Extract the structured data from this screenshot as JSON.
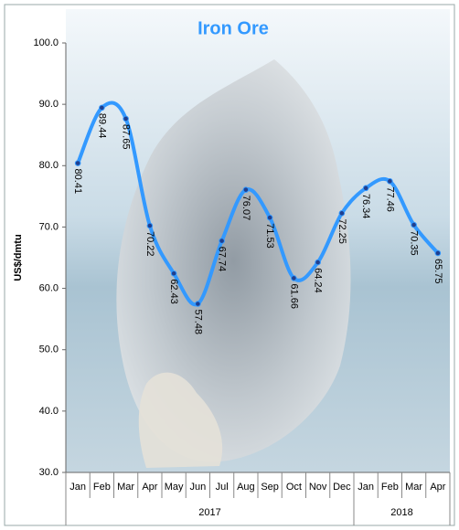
{
  "chart_data": {
    "type": "line",
    "title": "Iron Ore",
    "y_label": "US$/dmtu",
    "categories": [
      "Jan",
      "Feb",
      "Mar",
      "Apr",
      "May",
      "Jun",
      "Jul",
      "Aug",
      "Sep",
      "Oct",
      "Nov",
      "Dec",
      "Jan",
      "Feb",
      "Mar",
      "Apr"
    ],
    "year_groups": [
      {
        "name": "2017",
        "count": 12
      },
      {
        "name": "2018",
        "count": 4
      }
    ],
    "series": [
      {
        "name": "Iron Ore",
        "color": "#3399ff",
        "values": [
          80.41,
          89.44,
          87.65,
          70.22,
          62.43,
          57.48,
          67.74,
          76.07,
          71.53,
          61.66,
          64.24,
          72.25,
          76.34,
          77.46,
          70.35,
          65.75
        ]
      }
    ],
    "ylim": [
      30,
      100
    ],
    "yticks": [
      {
        "value": 30,
        "label": "30.0"
      },
      {
        "value": 40,
        "label": "40.0"
      },
      {
        "value": 50,
        "label": "50.0"
      },
      {
        "value": 60,
        "label": "60.0"
      },
      {
        "value": 70,
        "label": "70.0"
      },
      {
        "value": 80,
        "label": "80.0"
      },
      {
        "value": 90,
        "label": "90.0"
      },
      {
        "value": 100,
        "label": "100.0"
      }
    ],
    "grid": false
  }
}
